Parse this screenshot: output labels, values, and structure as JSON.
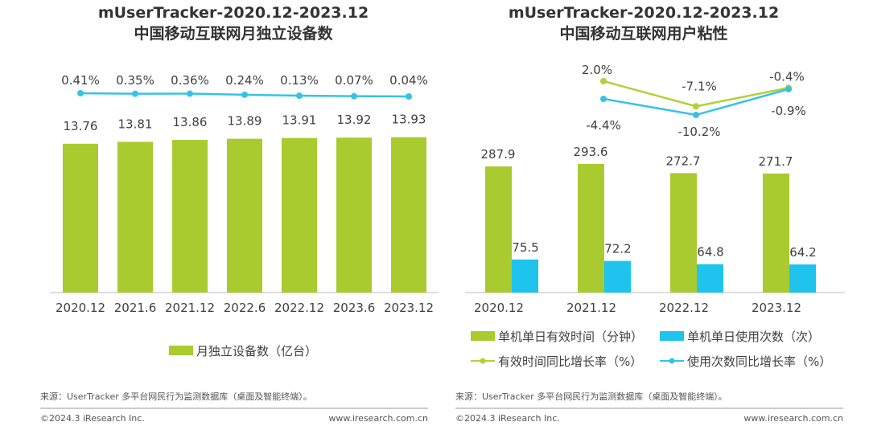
{
  "colors": {
    "green": "#a9cb2f",
    "blue": "#1ec4ee",
    "green_line": "#b3d03a",
    "blue_line": "#34c3e7"
  },
  "source": "来源：UserTracker 多平台网民行为监测数据库（桌面及智能终端）。",
  "copyright": "©2024.3 iResearch Inc.",
  "website": "www.iresearch.com.cn",
  "chart_data": [
    {
      "type": "bar+line",
      "title": "mUserTracker-2020.12-2023.12",
      "subtitle": "中国移动互联网月独立设备数",
      "categories": [
        "2020.12",
        "2021.6",
        "2021.12",
        "2022.6",
        "2022.12",
        "2023.6",
        "2023.12"
      ],
      "series": [
        {
          "name": "月独立设备数（亿台）",
          "type": "bar",
          "values": [
            13.76,
            13.81,
            13.86,
            13.89,
            13.91,
            13.92,
            13.93
          ],
          "labels": [
            "13.76",
            "13.81",
            "13.86",
            "13.89",
            "13.91",
            "13.92",
            "13.93"
          ]
        },
        {
          "type": "line",
          "values": [
            0.41,
            0.35,
            0.36,
            0.24,
            0.13,
            0.07,
            0.04
          ],
          "labels": [
            "0.41%",
            "0.35%",
            "0.36%",
            "0.24%",
            "0.13%",
            "0.07%",
            "0.04%"
          ]
        }
      ],
      "legend": "bottom"
    },
    {
      "type": "bar+line",
      "title": "mUserTracker-2020.12-2023.12",
      "subtitle": "中国移动互联网用户粘性",
      "categories": [
        "2020.12",
        "2021.12",
        "2022.12",
        "2023.12"
      ],
      "series": [
        {
          "name": "单机单日有效时间（分钟）",
          "type": "bar",
          "values": [
            287.9,
            293.6,
            272.7,
            271.7
          ],
          "labels": [
            "287.9",
            "293.6",
            "272.7",
            "271.7"
          ]
        },
        {
          "name": "单机单日使用次数（次）",
          "type": "bar",
          "values": [
            75.5,
            72.2,
            64.8,
            64.2
          ],
          "labels": [
            "75.5",
            "72.2",
            "64.8",
            "64.2"
          ]
        },
        {
          "name": "有效时间同比增长率（%）",
          "type": "line",
          "values": [
            null,
            2.0,
            -7.1,
            -0.4
          ],
          "labels": [
            null,
            "2.0%",
            "-7.1%",
            "-0.4%"
          ]
        },
        {
          "name": "使用次数同比增长率（%）",
          "type": "line",
          "values": [
            null,
            -4.4,
            -10.2,
            -0.9
          ],
          "labels": [
            null,
            "-4.4%",
            "-10.2%",
            "-0.9%"
          ]
        }
      ],
      "legend": "bottom"
    }
  ]
}
